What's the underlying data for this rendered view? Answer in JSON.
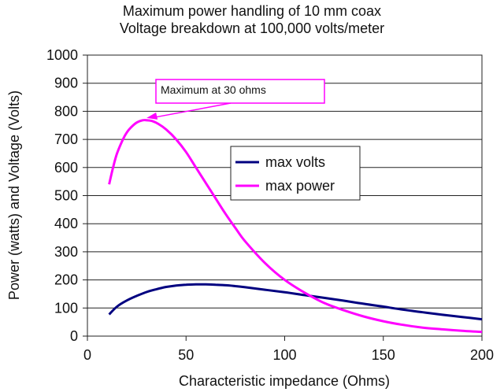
{
  "chart_data": {
    "type": "line",
    "title": "Maximum power handling of 10 mm coax",
    "subtitle": "Voltage breakdown at 100,000 volts/meter",
    "xlabel": "Characteristic impedance (Ohms)",
    "ylabel": "Power (watts) and Voltage (Volts)",
    "xlim": [
      0,
      200
    ],
    "ylim": [
      0,
      1000
    ],
    "xticks": [
      0,
      50,
      100,
      150,
      200
    ],
    "yticks": [
      0,
      100,
      200,
      300,
      400,
      500,
      600,
      700,
      800,
      900,
      1000
    ],
    "grid": "horizontal",
    "legend_position": "center-right",
    "series": [
      {
        "name": "max volts",
        "color": "#000080",
        "x": [
          11,
          15,
          20,
          25,
          30,
          35,
          40,
          45,
          50,
          55,
          60,
          65,
          70,
          75,
          80,
          90,
          100,
          110,
          120,
          130,
          140,
          150,
          160,
          170,
          180,
          190,
          200
        ],
        "y": [
          77,
          105,
          127,
          143,
          157,
          167,
          175,
          180,
          183,
          184,
          184,
          183,
          181,
          178,
          174,
          165,
          156,
          146,
          136,
          126,
          115,
          105,
          94,
          85,
          76,
          68,
          60
        ]
      },
      {
        "name": "max power",
        "color": "#ff00ff",
        "x": [
          11,
          13,
          15,
          18,
          20,
          22,
          25,
          28,
          30,
          33,
          36,
          40,
          45,
          50,
          55,
          60,
          65,
          70,
          75,
          80,
          90,
          100,
          110,
          120,
          130,
          140,
          150,
          160,
          170,
          180,
          190,
          200
        ],
        "y": [
          540,
          600,
          650,
          700,
          725,
          742,
          760,
          768,
          768,
          765,
          755,
          735,
          700,
          655,
          600,
          545,
          490,
          435,
          385,
          337,
          260,
          200,
          155,
          118,
          92,
          70,
          53,
          40,
          30,
          24,
          19,
          15
        ]
      }
    ],
    "annotation": {
      "text": "Maximum at 30 ohms",
      "x": 30,
      "y": 768,
      "color": "#ff00ff"
    }
  }
}
